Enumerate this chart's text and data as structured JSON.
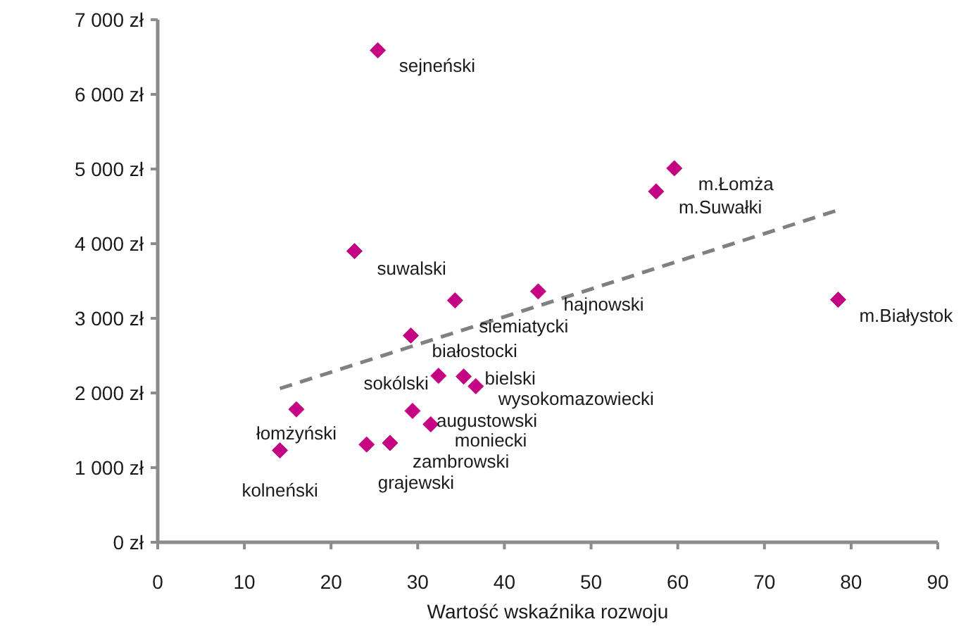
{
  "chart_data": {
    "type": "scatter",
    "xlabel": "Wartość wskaźnika rozwoju",
    "xlim": [
      0,
      90
    ],
    "xticks": [
      0,
      10,
      20,
      30,
      40,
      50,
      60,
      70,
      80,
      90
    ],
    "ylim": [
      0,
      7000
    ],
    "yticks": [
      {
        "value": 0,
        "label": "0 zł"
      },
      {
        "value": 1000,
        "label": "1 000 zł"
      },
      {
        "value": 2000,
        "label": "2 000 zł"
      },
      {
        "value": 3000,
        "label": "3 000 zł"
      },
      {
        "value": 4000,
        "label": "4 000 zł"
      },
      {
        "value": 5000,
        "label": "5 000 zł"
      },
      {
        "value": 6000,
        "label": "6 000 zł"
      },
      {
        "value": 7000,
        "label": "7 000 zł"
      }
    ],
    "series": [
      {
        "color": "#c40483",
        "marker": "diamond",
        "x": [
          25.4,
          22.7,
          34.3,
          43.9,
          59.6,
          57.5,
          78.5,
          29.2,
          32.4,
          35.3,
          36.7,
          29.4,
          31.5,
          26.8,
          24.1,
          16.0,
          14.1
        ],
        "values": [
          6590,
          3900,
          3240,
          3360,
          5010,
          4700,
          3250,
          2770,
          2230,
          2220,
          2090,
          1760,
          1580,
          1330,
          1310,
          1780,
          1230
        ]
      },
      {
        "type": "line",
        "color": "#808080",
        "line_style": "dashed",
        "x": [
          14.1,
          78.5
        ],
        "values": [
          2060,
          4450
        ]
      }
    ],
    "annotations": [
      {
        "text": "sejneński",
        "x": 25.4,
        "y": 6590
      },
      {
        "text": "suwalski",
        "x": 22.7,
        "y": 3900
      },
      {
        "text": "siemiatycki",
        "x": 34.3,
        "y": 3240
      },
      {
        "text": "hajnowski",
        "x": 43.9,
        "y": 3360
      },
      {
        "text": "m.Łomża",
        "x": 59.6,
        "y": 5010
      },
      {
        "text": "m.Suwałki",
        "x": 57.5,
        "y": 4700
      },
      {
        "text": "m.Białystok",
        "x": 78.5,
        "y": 3250
      },
      {
        "text": "białostocki",
        "x": 29.2,
        "y": 2770
      },
      {
        "text": "sokólski",
        "x": 32.4,
        "y": 2230
      },
      {
        "text": "bielski",
        "x": 35.3,
        "y": 2220
      },
      {
        "text": "wysokomazowiecki",
        "x": 36.7,
        "y": 2090
      },
      {
        "text": "augustowski",
        "x": 29.4,
        "y": 1760
      },
      {
        "text": "moniecki",
        "x": 31.5,
        "y": 1580
      },
      {
        "text": "zambrowski",
        "x": 26.8,
        "y": 1330
      },
      {
        "text": "grajewski",
        "x": 24.1,
        "y": 1310
      },
      {
        "text": "łomżyński",
        "x": 16.0,
        "y": 1780
      },
      {
        "text": "kolneński",
        "x": 14.1,
        "y": 1230
      }
    ]
  }
}
